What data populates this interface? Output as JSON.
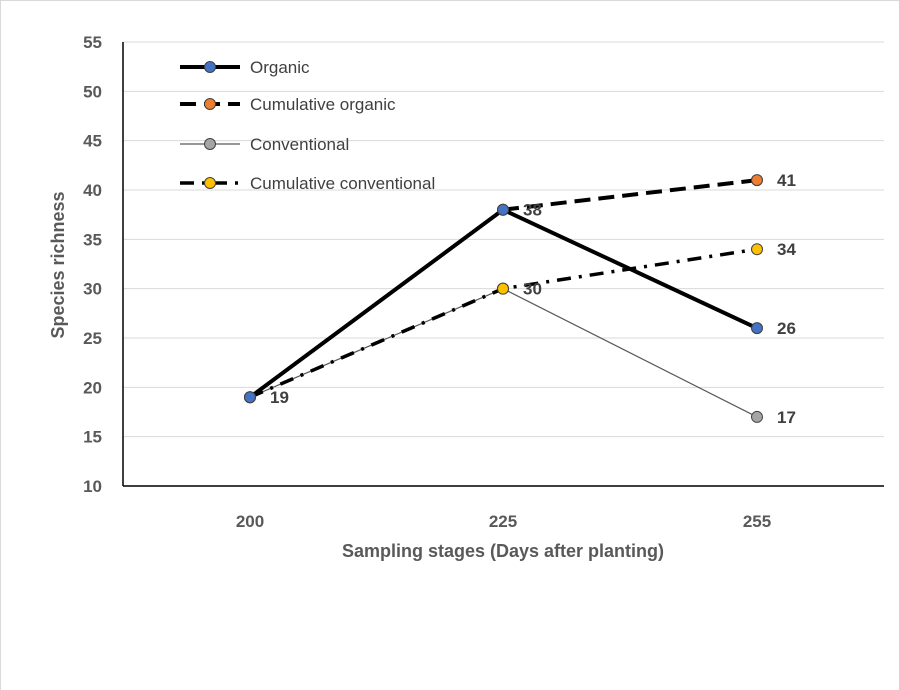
{
  "chart_data": {
    "type": "line",
    "title": "",
    "xlabel": "Sampling stages (Days after planting)",
    "ylabel": "Species richness",
    "categories": [
      "200",
      "225",
      "255"
    ],
    "ylim": [
      10,
      55
    ],
    "yticks": [
      10,
      15,
      20,
      25,
      30,
      35,
      40,
      45,
      50,
      55
    ],
    "grid": "horizontal",
    "legend": "top-left",
    "series": [
      {
        "name": "Organic",
        "values": [
          19,
          38,
          26
        ],
        "color": "#000000",
        "marker": "#4472c4",
        "style": "solid-thick",
        "labels": [
          "19",
          "38",
          "26"
        ]
      },
      {
        "name": "Cumulative organic",
        "values": [
          null,
          38,
          41
        ],
        "color": "#000000",
        "marker": "#ed7d31",
        "style": "dashed-thick",
        "labels": [
          "",
          "",
          "41"
        ]
      },
      {
        "name": "Conventional",
        "values": [
          19,
          30,
          17
        ],
        "color": "#595959",
        "marker": "#a5a5a5",
        "style": "solid-thin",
        "labels": [
          "",
          "30",
          "17"
        ]
      },
      {
        "name": "Cumulative conventional",
        "values": [
          19,
          30,
          34
        ],
        "color": "#000000",
        "marker": "#ffc000",
        "style": "dashdot",
        "labels": [
          "",
          "",
          "34"
        ]
      }
    ]
  }
}
